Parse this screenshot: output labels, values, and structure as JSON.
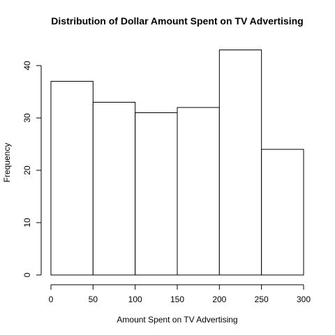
{
  "chart_data": {
    "type": "bar",
    "title": "Distribution of Dollar Amount Spent on TV Advertising",
    "xlabel": "Amount Spent on TV Advertising",
    "ylabel": "Frequency",
    "bins": [
      [
        0,
        50
      ],
      [
        50,
        100
      ],
      [
        100,
        150
      ],
      [
        150,
        200
      ],
      [
        200,
        250
      ],
      [
        250,
        300
      ]
    ],
    "values": [
      37,
      33,
      31,
      32,
      43,
      24
    ],
    "xlim": [
      0,
      300
    ],
    "ylim": [
      0,
      40
    ],
    "x_ticks": [
      "0",
      "50",
      "100",
      "150",
      "200",
      "250",
      "300"
    ],
    "y_ticks": [
      "0",
      "10",
      "20",
      "30",
      "40"
    ],
    "grid": false,
    "bar_fill": "#ffffff",
    "bar_stroke": "#000000"
  }
}
